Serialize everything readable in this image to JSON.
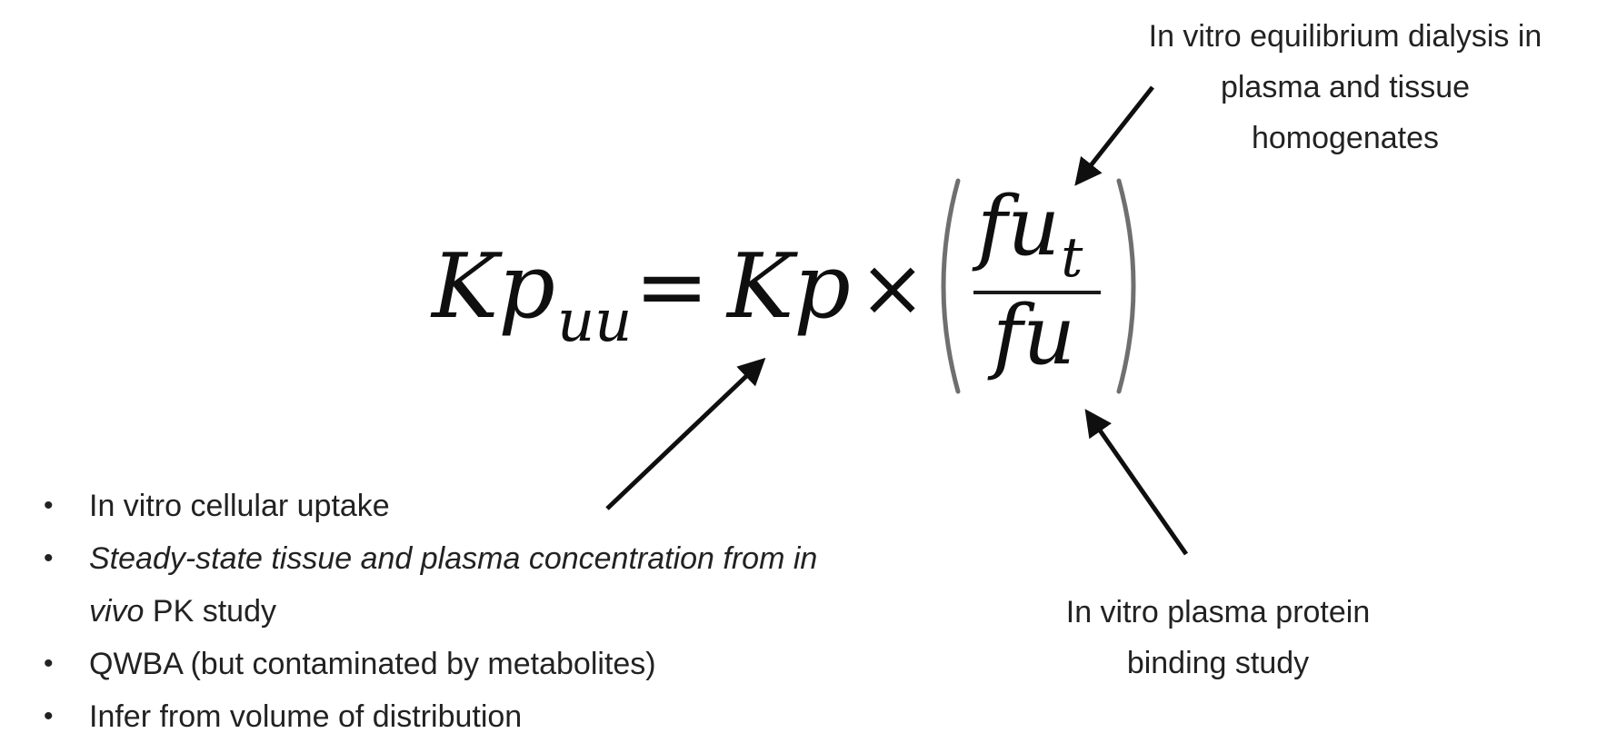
{
  "equation": {
    "lhs_main": "Kp",
    "lhs_sub": "uu",
    "equals": "=",
    "kp": "Kp",
    "times": "×",
    "numerator_main": "fu",
    "numerator_sub": "t",
    "denominator": "fu"
  },
  "annotations": {
    "top": [
      "In vitro equilibrium dialysis in",
      "plasma and tissue",
      "homogenates"
    ],
    "bottom": [
      "In vitro plasma protein",
      "binding study"
    ]
  },
  "bullets": [
    {
      "text": "In vitro cellular uptake"
    },
    {
      "italic": "Steady-state tissue and plasma concentration from in vivo",
      "text": " PK study"
    },
    {
      "text": "QWBA (but contaminated by metabolites)"
    },
    {
      "text": "Infer from volume of distribution"
    }
  ],
  "bullet_symbol": "•",
  "colors": {
    "text": "#222222",
    "arrow": "#0f0f0f"
  }
}
